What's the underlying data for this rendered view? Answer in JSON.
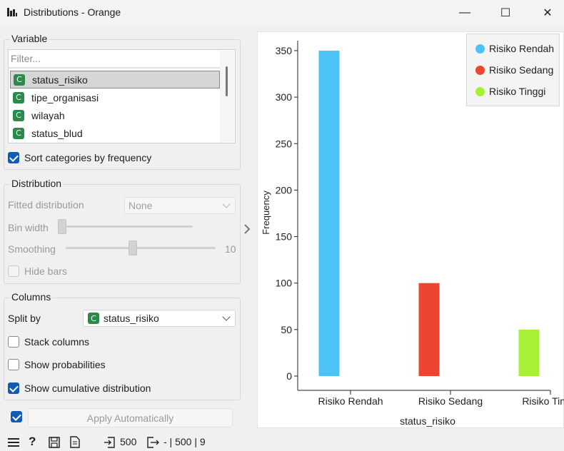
{
  "window": {
    "title": "Distributions - Orange",
    "icon": "bar-chart-icon",
    "minimize": "—",
    "maximize": "☐",
    "close": "✕"
  },
  "variable_box": {
    "title": "Variable",
    "filter_placeholder": "Filter...",
    "items": [
      {
        "label": "status_risiko",
        "type": "C",
        "selected": true
      },
      {
        "label": "tipe_organisasi",
        "type": "C",
        "selected": false
      },
      {
        "label": "wilayah",
        "type": "C",
        "selected": false
      },
      {
        "label": "status_blud",
        "type": "C",
        "selected": false
      }
    ],
    "sort_label": "Sort categories by frequency",
    "sort_checked": true
  },
  "distribution_box": {
    "title": "Distribution",
    "fitted_label": "Fitted distribution",
    "fitted_value": "None",
    "bin_width_label": "Bin width",
    "smoothing_label": "Smoothing",
    "smoothing_value": "10",
    "hide_bars_label": "Hide bars"
  },
  "columns_box": {
    "title": "Columns",
    "split_by_label": "Split by",
    "split_by_value": "status_risiko",
    "split_by_type": "C",
    "stack_label": "Stack columns",
    "probabilities_label": "Show probabilities",
    "cumulative_label": "Show cumulative distribution",
    "stack_checked": false,
    "probabilities_checked": false,
    "cumulative_checked": true
  },
  "apply": {
    "label": "Apply Automatically",
    "checked": true
  },
  "statusbar": {
    "input_count": "500",
    "output_summary": "- | 500 | 9"
  },
  "colors": {
    "Risiko Rendah": "#4cc3f6",
    "Risiko Sedang": "#ee4530",
    "Risiko Tinggi": "#a6f038",
    "accent": "#0f5bb5"
  },
  "chart_data": {
    "type": "bar",
    "categories": [
      "Risiko Rendah",
      "Risiko Sedang",
      "Risiko Tinggi"
    ],
    "values": [
      350,
      100,
      50
    ],
    "xlabel": "status_risiko",
    "ylabel": "Frequency",
    "ylim": [
      0,
      360
    ],
    "yticks": [
      0,
      50,
      100,
      150,
      200,
      250,
      300,
      350
    ],
    "legend": [
      "Risiko Rendah",
      "Risiko Sedang",
      "Risiko Tinggi"
    ],
    "legend_position": "top-right",
    "grid": false
  }
}
